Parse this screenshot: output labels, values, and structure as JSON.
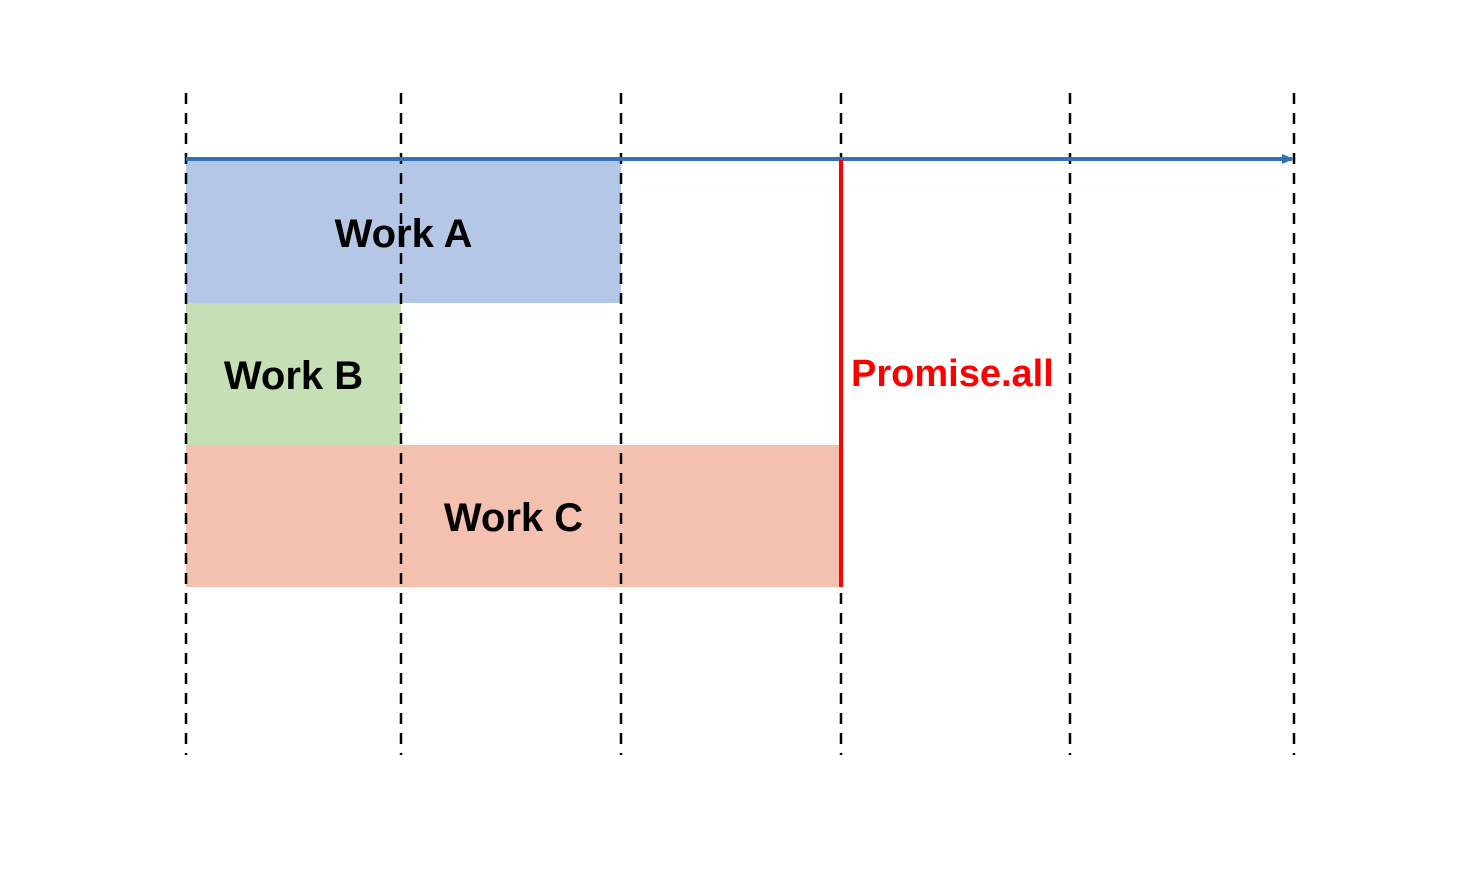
{
  "diagram": {
    "colors": {
      "background": "#ffffff",
      "gridline": "#000000",
      "timeline_arrow": "#2e75b6",
      "marker": "#ff0000"
    },
    "gridline_count": 6,
    "works": [
      {
        "label": "Work A",
        "start_slot": 0,
        "end_slot": 2,
        "color": "#b4c7e7"
      },
      {
        "label": "Work B",
        "start_slot": 0,
        "end_slot": 1,
        "color": "#c5e0b4"
      },
      {
        "label": "Work C",
        "start_slot": 0,
        "end_slot": 3,
        "color": "#f4c0b0"
      }
    ],
    "marker": {
      "label": "Promise.all",
      "slot": 3
    }
  }
}
